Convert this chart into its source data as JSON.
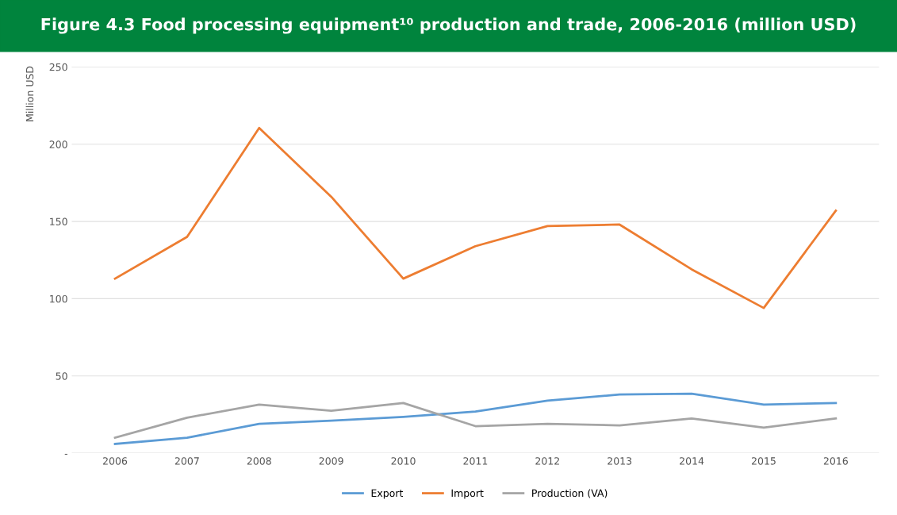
{
  "chart_data": {
    "type": "line",
    "title": "Figure 4.3 Food processing equipment¹⁰ production and trade, 2006-2016 (million USD)",
    "ylabel": "Million USD",
    "categories": [
      "2006",
      "2007",
      "2008",
      "2009",
      "2010",
      "2011",
      "2012",
      "2013",
      "2014",
      "2015",
      "2016"
    ],
    "series": [
      {
        "name": "Export",
        "color": "#5b9bd5",
        "values": [
          6,
          10,
          19,
          21,
          23.5,
          27,
          34,
          38,
          38.5,
          31.5,
          32.5
        ]
      },
      {
        "name": "Import",
        "color": "#ed7d31",
        "values": [
          113,
          140,
          210.5,
          166,
          113,
          134,
          147,
          148,
          119,
          94,
          157
        ]
      },
      {
        "name": "Production (VA)",
        "color": "#a5a5a5",
        "values": [
          10,
          23,
          31.5,
          27.5,
          32.5,
          17.5,
          19,
          18,
          22.5,
          16.5,
          22.5
        ]
      }
    ],
    "ylim": [
      0,
      250
    ],
    "yticks": [
      {
        "value": 0,
        "label": "-"
      },
      50,
      100,
      150,
      200,
      250
    ],
    "grid": "y",
    "legend": "bottom",
    "marker": "none",
    "line_style": "solid"
  }
}
